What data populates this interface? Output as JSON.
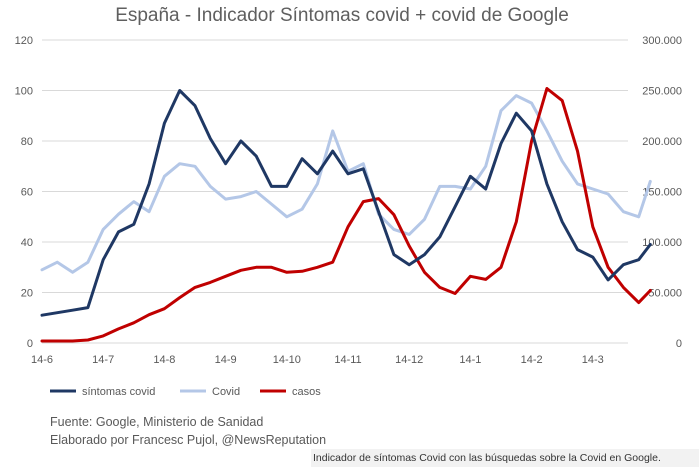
{
  "chart_data": {
    "type": "line",
    "title": "España - Indicador Síntomas covid + covid de Google",
    "x_ticks": [
      "14-6",
      "14-7",
      "14-8",
      "14-9",
      "14-10",
      "14-11",
      "14-12",
      "14-1",
      "14-2",
      "14-3"
    ],
    "y_left": {
      "min": 0,
      "max": 120,
      "ticks": [
        "0",
        "20",
        "40",
        "60",
        "80",
        "100",
        "120"
      ]
    },
    "y_right": {
      "min": 0,
      "max": 300000,
      "ticks": [
        "0",
        "50.000",
        "100.000",
        "150.000",
        "200.000",
        "250.000",
        "300.000"
      ]
    },
    "grid": true,
    "legend_position": "bottom-left",
    "series": [
      {
        "name": "síntomas covid",
        "axis": "left",
        "color": "#1f3864",
        "x": [
          0,
          0.25,
          0.5,
          0.75,
          1,
          1.25,
          1.5,
          1.75,
          2,
          2.25,
          2.5,
          2.75,
          3,
          3.25,
          3.5,
          3.75,
          4,
          4.25,
          4.5,
          4.75,
          5,
          5.25,
          5.5,
          5.75,
          6,
          6.25,
          6.5,
          6.75,
          7,
          7.25,
          7.5,
          7.75,
          8,
          8.25,
          8.5,
          8.75,
          9,
          9.25,
          9.5,
          9.75
        ],
        "values": [
          11,
          12,
          13,
          14,
          33,
          44,
          47,
          63,
          87,
          100,
          94,
          81,
          71,
          80,
          74,
          62,
          62,
          73,
          67,
          76,
          67,
          69,
          52,
          35,
          31,
          35,
          42,
          54,
          66,
          61,
          79,
          91,
          84,
          63,
          48,
          37,
          34,
          25,
          31,
          33
        ]
      },
      {
        "name": "Covid",
        "axis": "left",
        "color": "#b4c7e7",
        "x": [
          0,
          0.25,
          0.5,
          0.75,
          1,
          1.25,
          1.5,
          1.75,
          2,
          2.25,
          2.5,
          2.75,
          3,
          3.25,
          3.5,
          3.75,
          4,
          4.25,
          4.5,
          4.75,
          5,
          5.25,
          5.5,
          5.75,
          6,
          6.25,
          6.5,
          6.75,
          7,
          7.25,
          7.5,
          7.75,
          8,
          8.25,
          8.5,
          8.75,
          9,
          9.25,
          9.5,
          9.75
        ],
        "values": [
          29,
          32,
          28,
          32,
          45,
          51,
          56,
          52,
          66,
          71,
          70,
          62,
          57,
          58,
          60,
          55,
          50,
          53,
          63,
          84,
          68,
          71,
          51,
          45,
          43,
          49,
          62,
          62,
          61,
          70,
          92,
          98,
          95,
          84,
          72,
          63,
          61,
          59,
          52,
          50
        ]
      },
      {
        "name": "casos",
        "axis": "right",
        "color": "#c00000",
        "x": [
          0,
          0.25,
          0.5,
          0.75,
          1,
          1.25,
          1.5,
          1.75,
          2,
          2.25,
          2.5,
          2.75,
          3,
          3.25,
          3.5,
          3.75,
          4,
          4.25,
          4.5,
          4.75,
          5,
          5.25,
          5.5,
          5.75,
          6,
          6.25,
          6.5,
          6.75,
          7,
          7.25,
          7.5,
          7.75,
          8,
          8.25,
          8.5,
          8.75,
          9,
          9.25,
          9.5,
          9.75
        ],
        "values": [
          2000,
          2000,
          2000,
          3000,
          7000,
          14000,
          20000,
          28000,
          34000,
          45000,
          55000,
          60000,
          66000,
          72000,
          75000,
          75000,
          70000,
          71000,
          75000,
          80000,
          115000,
          140000,
          143000,
          127000,
          96000,
          70000,
          55000,
          49000,
          66000,
          63000,
          75000,
          120000,
          200000,
          252000,
          240000,
          190000,
          115000,
          75000,
          55000,
          40000
        ]
      }
    ],
    "extra_points": {
      "síntomas covid": {
        "x": 9.94,
        "value": 39
      },
      "Covid": {
        "x": 9.94,
        "value": 64
      },
      "casos": {
        "x": 9.94,
        "value": 52000
      }
    },
    "legend": [
      "síntomas covid",
      "Covid",
      "casos"
    ]
  },
  "source_line_1": "Fuente: Google, Ministerio de Sanidad",
  "source_line_2": "Elaborado por Francesc Pujol, @NewsReputation",
  "caption": "Indicador de síntomas Covid con las búsquedas sobre la Covid en Google."
}
